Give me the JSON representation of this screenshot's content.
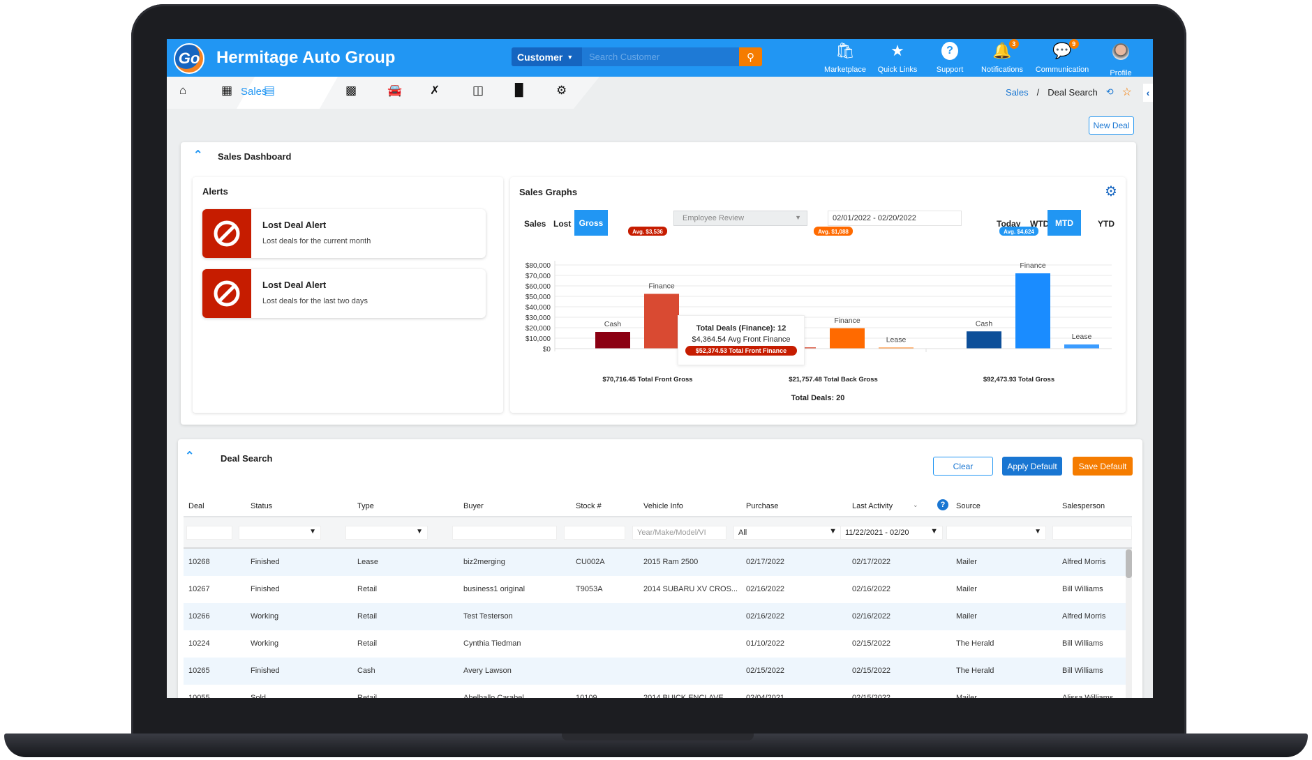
{
  "header": {
    "logo": "Go",
    "title": "Hermitage Auto Group",
    "search_scope": "Customer",
    "search_placeholder": "Search Customer",
    "nav": [
      {
        "label": "Marketplace",
        "icon": "shopping-bag-icon"
      },
      {
        "label": "Quick Links",
        "icon": "star-history-icon"
      },
      {
        "label": "Support",
        "icon": "question-icon"
      },
      {
        "label": "Notifications",
        "icon": "bell-icon",
        "badge": "3"
      },
      {
        "label": "Communication",
        "icon": "chat-icon",
        "badge": "9"
      },
      {
        "label": "Profile",
        "icon": "avatar"
      }
    ]
  },
  "navbar": {
    "active_label": "Sales",
    "icons": [
      "home-icon",
      "calculator-icon",
      "sales-icon",
      "contact-icon",
      "car-icon",
      "tools-icon",
      "battery-icon",
      "bar-chart-icon",
      "gear-icon"
    ]
  },
  "breadcrumb": {
    "parent": "Sales",
    "sep": "/",
    "current": "Deal Search"
  },
  "new_deal": "New Deal",
  "dashboard": {
    "title": "Sales Dashboard",
    "alerts": {
      "title": "Alerts",
      "items": [
        {
          "title": "Lost Deal Alert",
          "subtitle": "Lost deals for the current month"
        },
        {
          "title": "Lost Deal Alert",
          "subtitle": "Lost deals for the last two days"
        }
      ]
    },
    "graphs": {
      "title": "Sales Graphs",
      "tabs": [
        "Sales",
        "Lost",
        "Gross"
      ],
      "active_tab": "Gross",
      "report": "Employee Review",
      "date_range": "02/01/2022 - 02/20/2022",
      "periods": [
        "Today",
        "WTD",
        "MTD",
        "YTD"
      ],
      "active_period": "MTD",
      "tooltip": {
        "line1": "Total Deals (Finance): 12",
        "line2": "$4,364.54 Avg Front Finance",
        "line3": "$52,374.53 Total Front Finance"
      },
      "total_deals": "Total Deals: 20"
    }
  },
  "chart_data": {
    "type": "bar",
    "ylim": [
      0,
      80000
    ],
    "yticks": [
      "$80,000",
      "$70,000",
      "$60,000",
      "$50,000",
      "$40,000",
      "$30,000",
      "$20,000",
      "$10,000",
      "$0"
    ],
    "grid": true,
    "groups": [
      {
        "label": "$70,716.45 Total Front Gross",
        "avg": "Avg. $3,536",
        "categories": [
          "Cash",
          "Finance",
          "Lease"
        ],
        "values": [
          16000,
          52374.53,
          2342
        ],
        "colors": [
          "#8b0012",
          "#d94a32",
          "#d94a32"
        ],
        "show_labels": [
          true,
          true,
          false
        ]
      },
      {
        "label": "$21,757.48 Total Back Gross",
        "avg": "Avg. $1,088",
        "categories": [
          "Cash",
          "Finance",
          "Lease"
        ],
        "values": [
          1200,
          19500,
          1057
        ],
        "colors": [
          "#d94a32",
          "#ff6a00",
          "#ff8a2a"
        ],
        "show_labels": [
          false,
          true,
          true
        ]
      },
      {
        "label": "$92,473.93 Total Gross",
        "avg": "Avg. $4,624",
        "categories": [
          "Cash",
          "Finance",
          "Lease"
        ],
        "values": [
          16500,
          72000,
          3974
        ],
        "colors": [
          "#0d4f99",
          "#1a8cff",
          "#3b9cff"
        ],
        "show_labels": [
          true,
          true,
          true
        ]
      }
    ],
    "avg_colors": [
      "#c61c00",
      "#ff6a00",
      "#2196f3"
    ]
  },
  "deal_search": {
    "title": "Deal Search",
    "buttons": {
      "clear": "Clear",
      "apply": "Apply Default",
      "save": "Save Default"
    },
    "columns": [
      "Deal",
      "Status",
      "Type",
      "Buyer",
      "Stock #",
      "Vehicle Info",
      "Purchase",
      "Last Activity",
      "Source",
      "Salesperson"
    ],
    "filters": {
      "vehicle_placeholder": "Year/Make/Model/VI",
      "purchase": "All",
      "last_activity": "11/22/2021 - 02/20"
    },
    "rows": [
      [
        "10268",
        "Finished",
        "Lease",
        "biz2merging",
        "CU002A",
        "2015 Ram 2500",
        "02/17/2022",
        "02/17/2022",
        "Mailer",
        "Alfred Morris"
      ],
      [
        "10267",
        "Finished",
        "Retail",
        "business1 original",
        "T9053A",
        "2014 SUBARU XV CROS...",
        "02/16/2022",
        "02/16/2022",
        "Mailer",
        "Bill Williams"
      ],
      [
        "10266",
        "Working",
        "Retail",
        "Test Testerson",
        "",
        "",
        "02/16/2022",
        "02/16/2022",
        "Mailer",
        "Alfred Morris"
      ],
      [
        "10224",
        "Working",
        "Retail",
        "Cynthia Tiedman",
        "",
        "",
        "01/10/2022",
        "02/15/2022",
        "The Herald",
        "Bill Williams"
      ],
      [
        "10265",
        "Finished",
        "Cash",
        "Avery Lawson",
        "",
        "",
        "02/15/2022",
        "02/15/2022",
        "The Herald",
        "Bill Williams"
      ],
      [
        "10055",
        "Sold",
        "Retail",
        "Abelballo Carabel",
        "10109",
        "2014 BUICK ENCLAVE",
        "02/04/2021",
        "02/15/2022",
        "Mailer",
        "Alissa Williams"
      ]
    ]
  }
}
